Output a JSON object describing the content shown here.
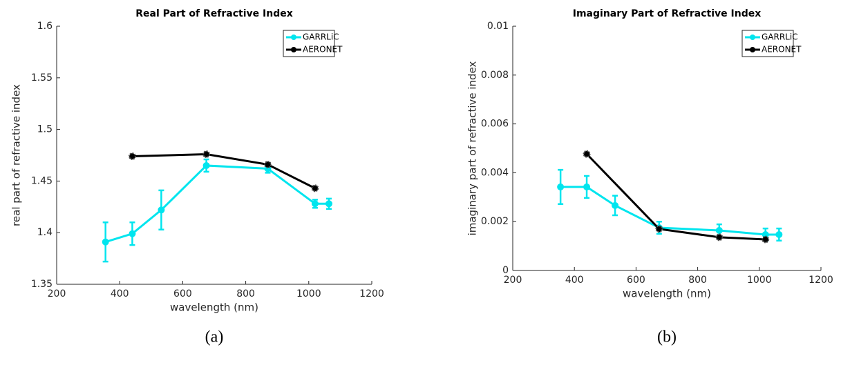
{
  "chart_data": [
    {
      "type": "line",
      "title": "Real Part of Refractive Index",
      "xlabel": "wavelength  (nm)",
      "ylabel": "real part of refractive index",
      "panel_label": "(a)",
      "xlim": [
        200,
        1200
      ],
      "xticks": [
        200,
        400,
        600,
        800,
        1000,
        1200
      ],
      "ylim": [
        1.35,
        1.6
      ],
      "yticks": [
        1.35,
        1.4,
        1.45,
        1.5,
        1.55,
        1.6
      ],
      "legend": "upper right",
      "series": [
        {
          "name": "GARRLiC",
          "color": "#00e5ee",
          "x": [
            355,
            440,
            532,
            675,
            870,
            1020,
            1064
          ],
          "values": [
            1.391,
            1.399,
            1.422,
            1.465,
            1.462,
            1.428,
            1.428
          ],
          "errors": [
            0.019,
            0.011,
            0.019,
            0.006,
            0.004,
            0.004,
            0.005
          ]
        },
        {
          "name": "AERONET",
          "color": "#000000",
          "x": [
            440,
            675,
            870,
            1020
          ],
          "values": [
            1.474,
            1.476,
            1.466,
            1.443
          ]
        }
      ]
    },
    {
      "type": "line",
      "title": "Imaginary Part of Refractive Index",
      "xlabel": "wavelength  (nm)",
      "ylabel": "imaginary part of refractive index",
      "panel_label": "(b)",
      "xlim": [
        200,
        1200
      ],
      "xticks": [
        200,
        400,
        600,
        800,
        1000,
        1200
      ],
      "ylim": [
        0,
        0.01
      ],
      "yticks": [
        0,
        0.002,
        0.004,
        0.006,
        0.008,
        0.01
      ],
      "legend": "upper right",
      "series": [
        {
          "name": "GARRLiC",
          "color": "#00e5ee",
          "x": [
            355,
            440,
            532,
            675,
            870,
            1020,
            1064
          ],
          "values": [
            0.00342,
            0.00342,
            0.00266,
            0.00175,
            0.00164,
            0.00147,
            0.00147
          ],
          "errors": [
            0.0007,
            0.00045,
            0.0004,
            0.00025,
            0.00025,
            0.00025,
            0.00025
          ]
        },
        {
          "name": "AERONET",
          "color": "#000000",
          "x": [
            440,
            675,
            870,
            1020
          ],
          "values": [
            0.00477,
            0.0017,
            0.00136,
            0.00127
          ]
        }
      ]
    }
  ]
}
